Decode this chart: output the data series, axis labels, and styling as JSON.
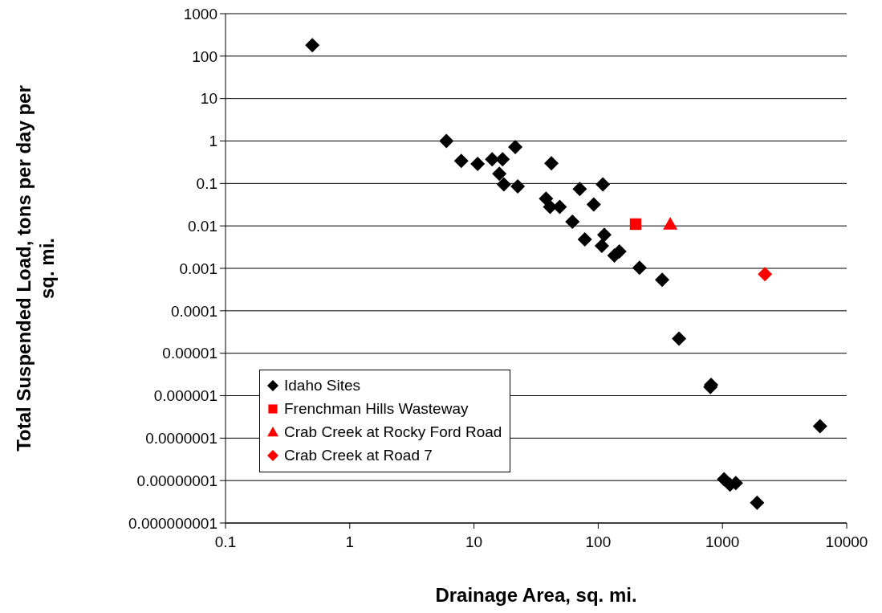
{
  "chart_data": {
    "type": "scatter",
    "xlabel": "Drainage Area, sq. mi.",
    "ylabel": "Total Suspended Load, tons per day per sq. mi.",
    "log": "xy",
    "grid": "y",
    "legend": "bottom left",
    "xlim": [
      0.1,
      10000
    ],
    "xticks": [
      0.1,
      1,
      10,
      100,
      1000,
      10000
    ],
    "ylim": [
      1e-09,
      1000
    ],
    "yticks": [
      1000,
      100,
      10,
      1,
      0.1,
      0.01,
      0.001,
      0.0001,
      {
        "value": 1e-05,
        "label": "0.00001"
      },
      {
        "value": 1e-06,
        "label": "0.000001"
      },
      {
        "value": 1e-07,
        "label": "0.0000001"
      },
      {
        "value": 1e-08,
        "label": "0.00000001"
      },
      {
        "value": 1e-09,
        "label": "0.000000001"
      }
    ],
    "series": [
      {
        "name": "Idaho Sites",
        "color": "#000000",
        "marker": "diamond",
        "x": [
          0.5,
          6.0,
          7.9,
          10.7,
          14,
          17,
          21.5,
          16,
          17.4,
          22.5,
          42,
          38,
          41,
          49,
          71,
          109,
          92,
          62,
          78,
          112,
          107,
          135,
          148,
          215,
          327,
          447,
          810,
          800,
          6100,
          1030,
          1150,
          1280,
          1900
        ],
        "values": [
          180,
          1.0,
          0.34,
          0.29,
          0.37,
          0.37,
          0.72,
          0.17,
          0.095,
          0.085,
          0.3,
          0.044,
          0.028,
          0.028,
          0.074,
          0.095,
          0.032,
          0.0125,
          0.0048,
          0.0062,
          0.0034,
          0.002,
          0.0025,
          0.00103,
          0.00054,
          2.2e-05,
          1.8e-06,
          1.6e-06,
          1.9e-07,
          1.07e-08,
          8e-09,
          8.7e-09,
          3e-09
        ]
      },
      {
        "name": "Frenchman Hills Wasteway",
        "color": "#ff0000",
        "marker": "square",
        "x": [
          200
        ],
        "values": [
          0.011
        ]
      },
      {
        "name": "Crab Creek at Rocky Ford Road",
        "color": "#ff0000",
        "marker": "triangle",
        "x": [
          380
        ],
        "values": [
          0.011
        ]
      },
      {
        "name": "Crab Creek at Road 7",
        "color": "#ff0000",
        "marker": "diamond",
        "x": [
          2200
        ],
        "values": [
          0.00073
        ]
      }
    ]
  }
}
